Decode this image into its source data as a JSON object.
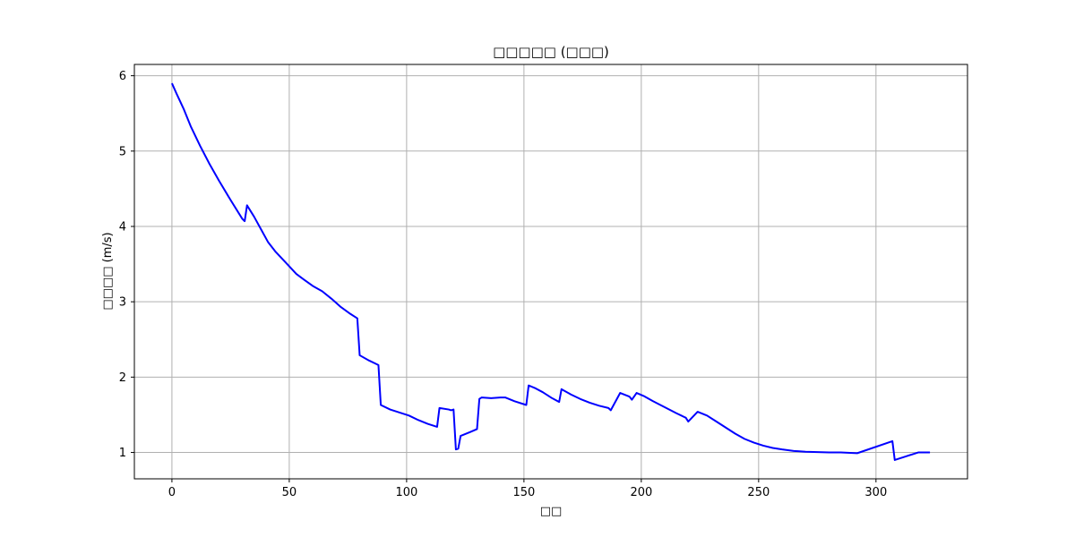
{
  "chart_data": {
    "type": "line",
    "title": "□□□□□ (□□□)",
    "xlabel": "□□",
    "ylabel": "□□□□ (m/s)",
    "xlim": [
      -16,
      339
    ],
    "ylim": [
      0.65,
      6.15
    ],
    "xticks": [
      0,
      50,
      100,
      150,
      200,
      250,
      300
    ],
    "yticks": [
      1,
      2,
      3,
      4,
      5,
      6
    ],
    "grid": true,
    "colors": {
      "line": "#0000ff"
    },
    "series": [
      {
        "x": [
          0,
          2,
          5,
          8,
          12,
          16,
          20,
          25,
          30,
          31,
          32,
          35,
          38,
          41,
          44,
          47,
          50,
          53,
          56,
          60,
          64,
          68,
          72,
          76,
          79,
          80,
          84,
          88,
          89,
          93,
          97,
          101,
          105,
          109,
          113,
          114,
          118,
          119,
          120,
          121,
          122,
          123,
          127,
          130,
          131,
          132,
          136,
          140,
          142,
          146,
          151,
          152,
          155,
          158,
          162,
          165,
          166,
          170,
          174,
          178,
          182,
          186,
          187,
          191,
          195,
          196,
          198,
          201,
          205,
          210,
          215,
          219,
          220,
          224,
          228,
          232,
          236,
          240,
          244,
          248,
          252,
          256,
          260,
          265,
          270,
          275,
          280,
          285,
          292,
          307,
          308,
          318,
          323
        ],
        "y": [
          5.9,
          5.76,
          5.56,
          5.33,
          5.07,
          4.83,
          4.61,
          4.35,
          4.1,
          4.07,
          4.28,
          4.13,
          3.96,
          3.79,
          3.67,
          3.57,
          3.47,
          3.37,
          3.3,
          3.21,
          3.14,
          3.04,
          2.93,
          2.84,
          2.78,
          2.29,
          2.22,
          2.16,
          1.63,
          1.57,
          1.53,
          1.49,
          1.43,
          1.38,
          1.34,
          1.59,
          1.57,
          1.56,
          1.57,
          1.04,
          1.05,
          1.22,
          1.27,
          1.31,
          1.71,
          1.73,
          1.72,
          1.73,
          1.73,
          1.68,
          1.63,
          1.89,
          1.85,
          1.8,
          1.72,
          1.67,
          1.84,
          1.77,
          1.71,
          1.66,
          1.62,
          1.59,
          1.56,
          1.79,
          1.74,
          1.7,
          1.79,
          1.75,
          1.68,
          1.6,
          1.52,
          1.46,
          1.41,
          1.54,
          1.49,
          1.41,
          1.33,
          1.25,
          1.18,
          1.13,
          1.09,
          1.06,
          1.04,
          1.02,
          1.01,
          1.005,
          1.0,
          1.0,
          0.99,
          1.15,
          0.9,
          1.0,
          1.0
        ]
      }
    ]
  }
}
